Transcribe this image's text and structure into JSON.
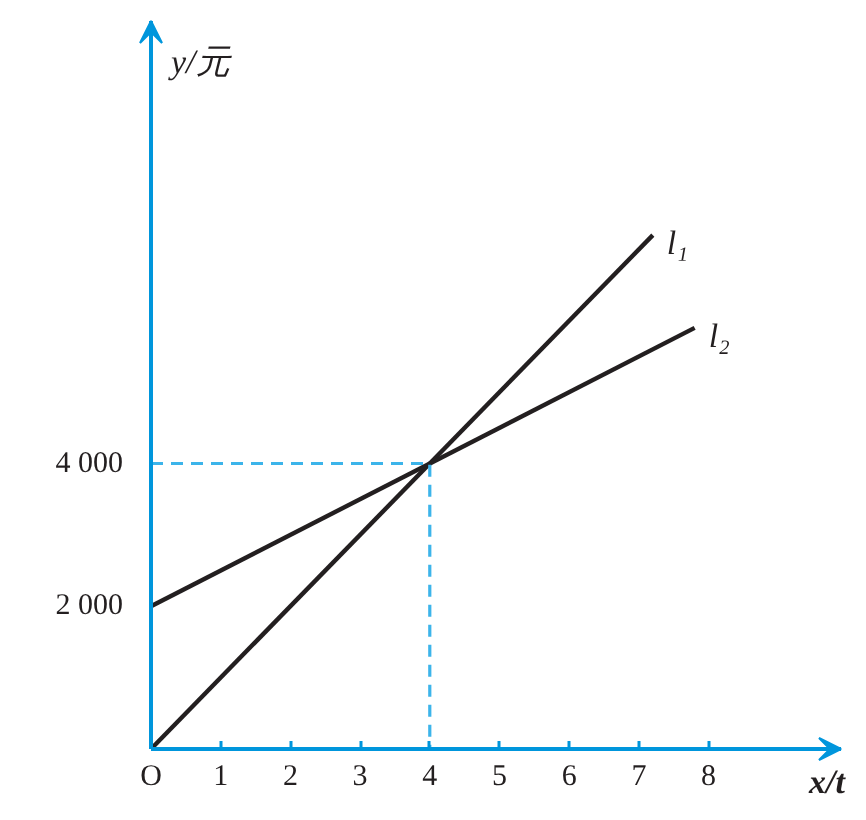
{
  "chart_data": {
    "type": "line",
    "xlabel": "x/t",
    "ylabel": "y/元",
    "xlim": [
      0,
      9.9
    ],
    "ylim": [
      0,
      10200
    ],
    "xticks": [
      {
        "value": 0,
        "label": "O"
      },
      1,
      2,
      3,
      4,
      5,
      6,
      7,
      8
    ],
    "yticks": [
      {
        "value": 2000,
        "label": "2 000"
      },
      {
        "value": 4000,
        "label": "4 000"
      }
    ],
    "grid": false,
    "legend": false,
    "marker": "none",
    "line_style": "solid",
    "series": [
      {
        "name": "l₁",
        "color": "#231f20",
        "x": [
          0,
          7.2
        ],
        "values": [
          0,
          7200
        ]
      },
      {
        "name": "l₂",
        "color": "#231f20",
        "x": [
          0,
          7.8
        ],
        "values": [
          2000,
          5900
        ]
      },
      {
        "color": "#3cb4ea",
        "x": [
          0,
          4,
          4
        ],
        "values": [
          4000,
          4000,
          0
        ],
        "line_style": "dashed"
      }
    ]
  }
}
